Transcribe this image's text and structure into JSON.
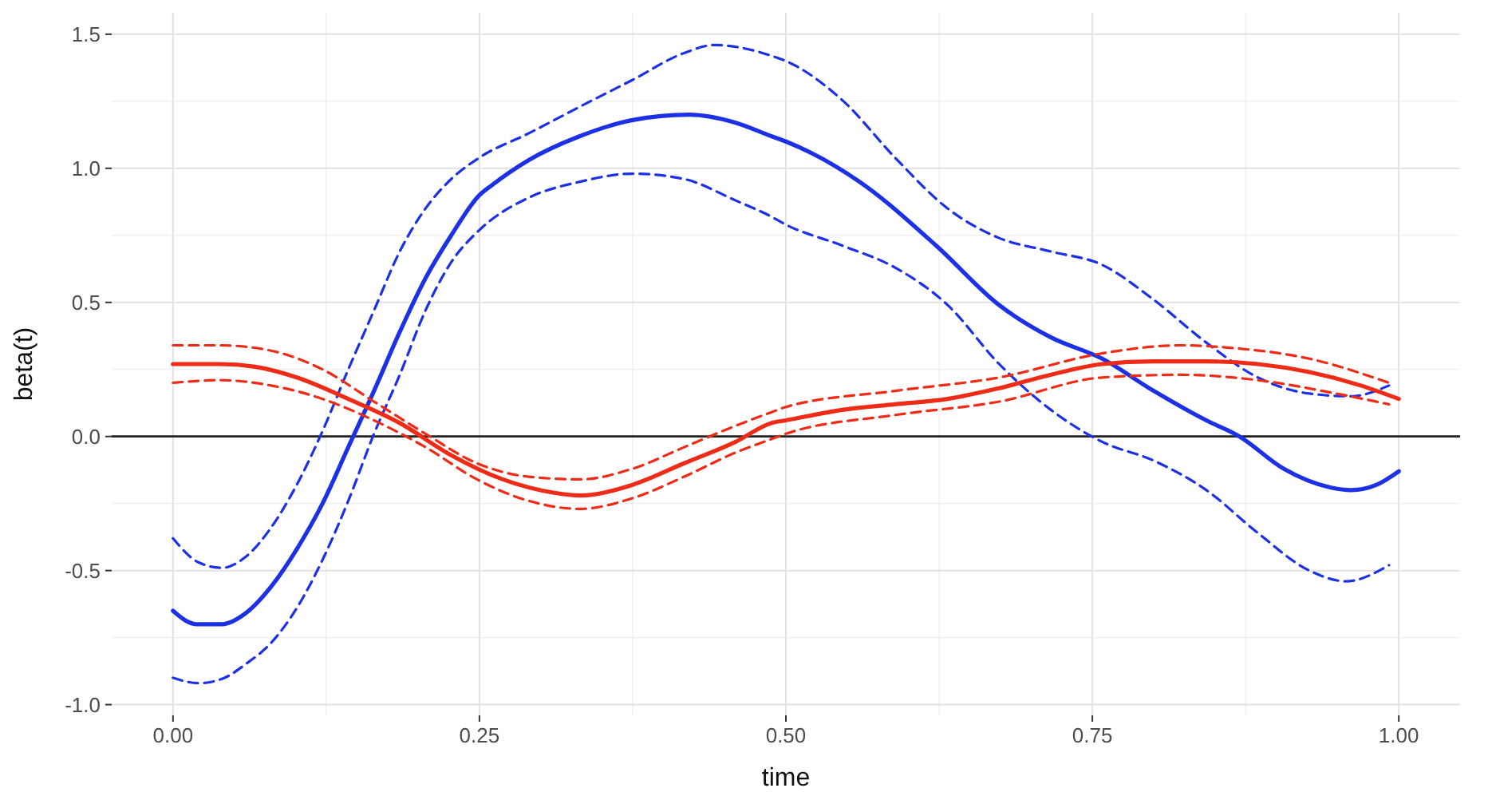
{
  "chart_data": {
    "type": "line",
    "xlabel": "time",
    "ylabel": "beta(t)",
    "xlim": [
      -0.05,
      1.05
    ],
    "ylim": [
      -1.04,
      1.58
    ],
    "xticks": [
      {
        "value": 0,
        "label": "0.00"
      },
      {
        "value": 0.25,
        "label": "0.25"
      },
      {
        "value": 0.5,
        "label": "0.50"
      },
      {
        "value": 0.75,
        "label": "0.75"
      },
      {
        "value": 1,
        "label": "1.00"
      }
    ],
    "yticks": [
      {
        "value": -1,
        "label": "-1.0"
      },
      {
        "value": -0.5,
        "label": "-0.5"
      },
      {
        "value": 0,
        "label": "0.0"
      },
      {
        "value": 0.5,
        "label": "0.5"
      },
      {
        "value": 1,
        "label": "1.0"
      },
      {
        "value": 1.5,
        "label": "1.5"
      }
    ],
    "grid": true,
    "ref_lines": [
      {
        "axis": "y",
        "value": 0,
        "color": "#222222"
      }
    ],
    "series": [
      {
        "color": "#1c30e6",
        "line_style": "dashed",
        "x": [
          0,
          0.021,
          0.04,
          0.059,
          0.08,
          0.101,
          0.122,
          0.143,
          0.164,
          0.185,
          0.206,
          0.227,
          0.25,
          0.29,
          0.332,
          0.375,
          0.417,
          0.442,
          0.463,
          0.488,
          0.5,
          0.547,
          0.589,
          0.632,
          0.674,
          0.716,
          0.758,
          0.8,
          0.843,
          0.885,
          0.927,
          0.961,
          0.992
        ],
        "values": [
          -0.38,
          -0.47,
          -0.49,
          -0.45,
          -0.34,
          -0.18,
          0.02,
          0.25,
          0.47,
          0.69,
          0.85,
          0.96,
          1.04,
          1.13,
          1.23,
          1.33,
          1.43,
          1.46,
          1.45,
          1.42,
          1.4,
          1.25,
          1.04,
          0.85,
          0.74,
          0.69,
          0.64,
          0.51,
          0.35,
          0.22,
          0.16,
          0.15,
          0.19
        ]
      },
      {
        "color": "#1c30e6",
        "line_style": "dashed",
        "x": [
          0,
          0.021,
          0.042,
          0.059,
          0.08,
          0.101,
          0.122,
          0.143,
          0.164,
          0.185,
          0.206,
          0.227,
          0.25,
          0.29,
          0.332,
          0.375,
          0.417,
          0.459,
          0.488,
          0.5,
          0.547,
          0.589,
          0.632,
          0.674,
          0.716,
          0.758,
          0.8,
          0.843,
          0.885,
          0.927,
          0.957,
          0.992
        ],
        "values": [
          -0.9,
          -0.92,
          -0.9,
          -0.85,
          -0.77,
          -0.64,
          -0.46,
          -0.24,
          0.01,
          0.23,
          0.47,
          0.65,
          0.77,
          0.89,
          0.95,
          0.98,
          0.96,
          0.88,
          0.82,
          0.79,
          0.71,
          0.63,
          0.49,
          0.27,
          0.1,
          -0.02,
          -0.09,
          -0.2,
          -0.36,
          -0.5,
          -0.54,
          -0.48
        ]
      },
      {
        "color": "#1c30e6",
        "line_style": "solid",
        "x": [
          0,
          0.019,
          0.04,
          0.059,
          0.08,
          0.101,
          0.122,
          0.143,
          0.164,
          0.185,
          0.206,
          0.227,
          0.25,
          0.261,
          0.29,
          0.332,
          0.375,
          0.421,
          0.459,
          0.488,
          0.5,
          0.56,
          0.623,
          0.674,
          0.716,
          0.758,
          0.8,
          0.843,
          0.87,
          0.906,
          0.944,
          0.961,
          0.982,
          1.0
        ],
        "values": [
          -0.65,
          -0.7,
          -0.7,
          -0.66,
          -0.56,
          -0.42,
          -0.25,
          -0.04,
          0.17,
          0.39,
          0.59,
          0.75,
          0.9,
          0.94,
          1.03,
          1.12,
          1.18,
          1.2,
          1.17,
          1.12,
          1.1,
          0.95,
          0.71,
          0.49,
          0.37,
          0.29,
          0.17,
          0.06,
          0,
          -0.12,
          -0.19,
          -0.2,
          -0.18,
          -0.13
        ]
      },
      {
        "color": "#ee2b16",
        "line_style": "dashed",
        "x": [
          0,
          0.038,
          0.08,
          0.122,
          0.164,
          0.206,
          0.248,
          0.29,
          0.332,
          0.375,
          0.417,
          0.459,
          0.488,
          0.5,
          0.589,
          0.674,
          0.758,
          0.822,
          0.864,
          0.927,
          0.992
        ],
        "values": [
          0.34,
          0.34,
          0.32,
          0.25,
          0.13,
          0.01,
          -0.1,
          -0.15,
          -0.16,
          -0.12,
          -0.04,
          0.04,
          0.09,
          0.11,
          0.17,
          0.22,
          0.31,
          0.34,
          0.33,
          0.29,
          0.2
        ]
      },
      {
        "color": "#ee2b16",
        "line_style": "dashed",
        "x": [
          0,
          0.038,
          0.08,
          0.122,
          0.164,
          0.206,
          0.248,
          0.29,
          0.332,
          0.375,
          0.417,
          0.459,
          0.488,
          0.5,
          0.589,
          0.674,
          0.758,
          0.822,
          0.885,
          0.949,
          0.992
        ],
        "values": [
          0.2,
          0.21,
          0.19,
          0.14,
          0.06,
          -0.04,
          -0.16,
          -0.24,
          -0.27,
          -0.23,
          -0.15,
          -0.06,
          -0.01,
          0.01,
          0.08,
          0.13,
          0.22,
          0.23,
          0.21,
          0.16,
          0.12
        ]
      },
      {
        "color": "#ee2b16",
        "line_style": "solid",
        "x": [
          0,
          0.038,
          0.067,
          0.101,
          0.143,
          0.185,
          0.227,
          0.269,
          0.311,
          0.332,
          0.375,
          0.417,
          0.459,
          0.488,
          0.5,
          0.547,
          0.589,
          0.632,
          0.674,
          0.716,
          0.758,
          0.8,
          0.843,
          0.885,
          0.927,
          0.969,
          1.0
        ],
        "values": [
          0.27,
          0.27,
          0.26,
          0.22,
          0.14,
          0.05,
          -0.07,
          -0.16,
          -0.21,
          -0.22,
          -0.18,
          -0.1,
          -0.02,
          0.05,
          0.06,
          0.1,
          0.12,
          0.14,
          0.18,
          0.23,
          0.27,
          0.28,
          0.28,
          0.27,
          0.24,
          0.19,
          0.14
        ]
      }
    ]
  }
}
